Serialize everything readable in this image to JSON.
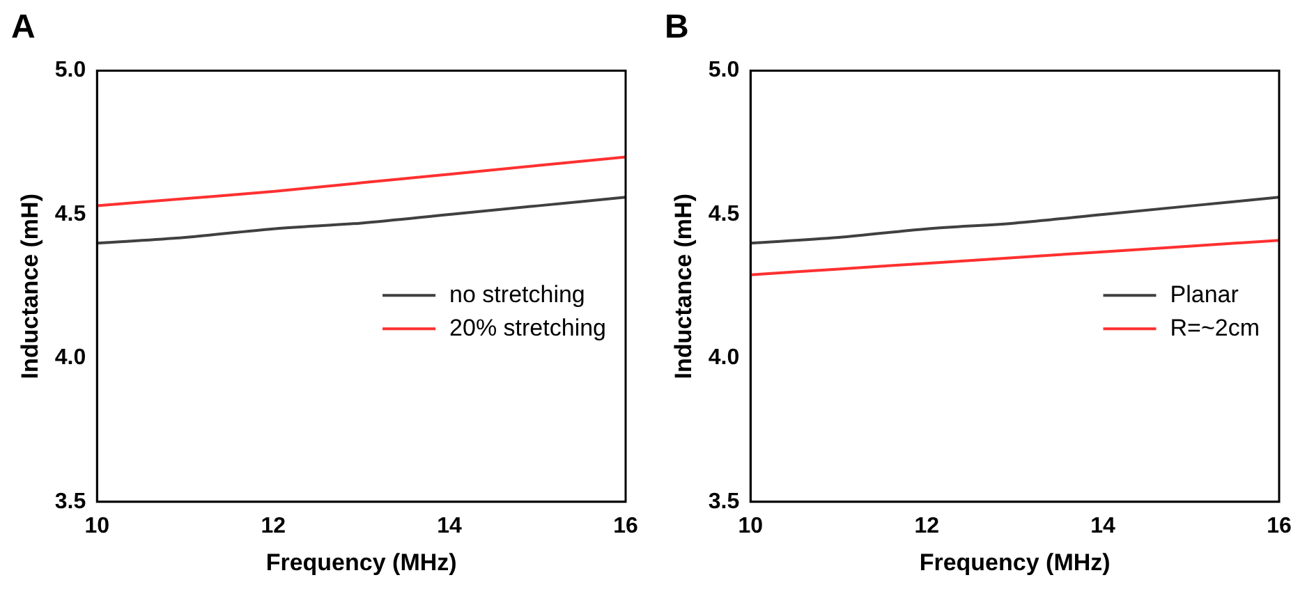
{
  "chart_data": [
    {
      "type": "line",
      "title": "A",
      "xlabel": "Frequency (MHz)",
      "ylabel": "Inductance (mH)",
      "x": [
        10,
        11,
        12,
        13,
        14,
        15,
        16
      ],
      "series": [
        {
          "name": "no stretching",
          "color": "#404040",
          "values": [
            4.4,
            4.42,
            4.45,
            4.47,
            4.5,
            4.53,
            4.56
          ]
        },
        {
          "name": "20% stretching",
          "color": "#ff3030",
          "values": [
            4.53,
            4.555,
            4.58,
            4.61,
            4.64,
            4.67,
            4.7
          ]
        }
      ],
      "xlim": [
        10,
        16
      ],
      "xticks": [
        10,
        12,
        14,
        16
      ],
      "ylim": [
        3.5,
        5.0
      ],
      "yticks": [
        {
          "value": 3.5,
          "label": "3.5"
        },
        {
          "value": 4.0,
          "label": "4.0"
        },
        {
          "value": 4.5,
          "label": "4.5"
        },
        {
          "value": 5.0,
          "label": "5.0"
        }
      ],
      "grid": false,
      "legend": "right",
      "marker": "none",
      "line_style": "solid"
    },
    {
      "type": "line",
      "title": "B",
      "xlabel": "Frequency (MHz)",
      "ylabel": "Inductance (mH)",
      "x": [
        10,
        11,
        12,
        13,
        14,
        15,
        16
      ],
      "series": [
        {
          "name": "Planar",
          "color": "#404040",
          "values": [
            4.4,
            4.42,
            4.45,
            4.47,
            4.5,
            4.53,
            4.56
          ]
        },
        {
          "name": "R=~2cm",
          "color": "#ff3030",
          "values": [
            4.29,
            4.31,
            4.33,
            4.35,
            4.37,
            4.39,
            4.41
          ]
        }
      ],
      "xlim": [
        10,
        16
      ],
      "xticks": [
        10,
        12,
        14,
        16
      ],
      "ylim": [
        3.5,
        5.0
      ],
      "yticks": [
        {
          "value": 3.5,
          "label": "3.5"
        },
        {
          "value": 4.0,
          "label": "4.0"
        },
        {
          "value": 4.5,
          "label": "4.5"
        },
        {
          "value": 5.0,
          "label": "5.0"
        }
      ],
      "grid": false,
      "legend": "right",
      "marker": "none",
      "line_style": "solid"
    }
  ]
}
